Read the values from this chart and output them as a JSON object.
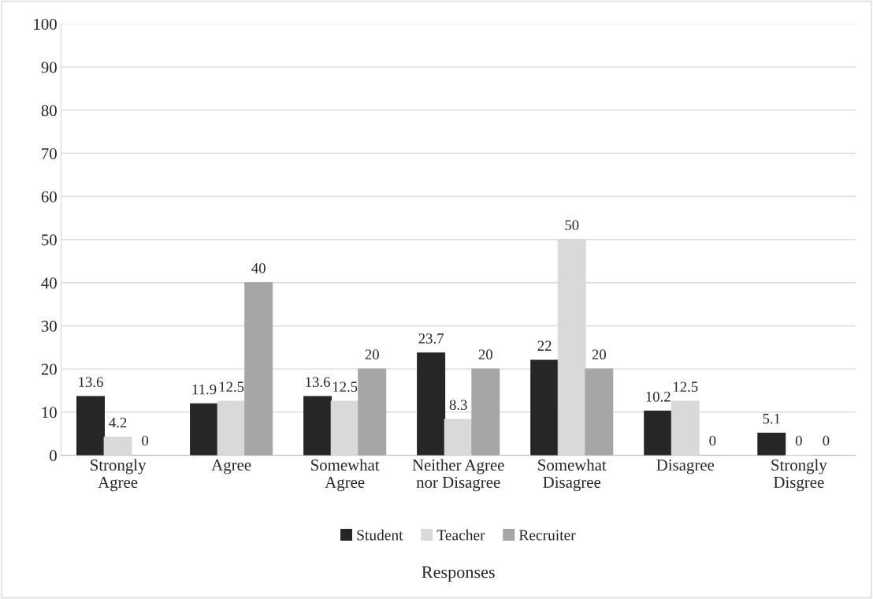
{
  "chart_data": {
    "type": "bar",
    "categories": [
      "Strongly\nAgree",
      "Agree",
      "Somewhat\nAgree",
      "Neither Agree\nnor Disagree",
      "Somewhat\nDisagree",
      "Disagree",
      "Strongly\nDisgree"
    ],
    "series": [
      {
        "name": "Student",
        "color": "#262626",
        "values": [
          13.6,
          11.9,
          13.6,
          23.7,
          22,
          10.2,
          5.1
        ]
      },
      {
        "name": "Teacher",
        "color": "#d9d9d9",
        "values": [
          4.2,
          12.5,
          12.5,
          8.3,
          50,
          12.5,
          0
        ]
      },
      {
        "name": "Recruiter",
        "color": "#a6a6a6",
        "values": [
          0,
          40,
          20,
          20,
          20,
          0,
          0
        ]
      }
    ],
    "xlabel": "Responses",
    "ylim": [
      0,
      100
    ],
    "yticks": [
      0,
      10,
      20,
      30,
      40,
      50,
      60,
      70,
      80,
      90,
      100
    ],
    "grid": "y",
    "legend": "bottom",
    "data_labels": true
  }
}
